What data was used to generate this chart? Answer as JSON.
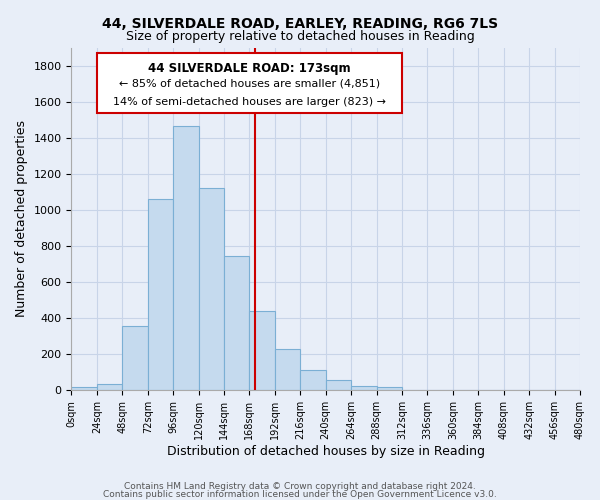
{
  "title": "44, SILVERDALE ROAD, EARLEY, READING, RG6 7LS",
  "subtitle": "Size of property relative to detached houses in Reading",
  "xlabel": "Distribution of detached houses by size in Reading",
  "ylabel": "Number of detached properties",
  "bar_color": "#c5daee",
  "bar_edge_color": "#7bafd4",
  "bin_edges": [
    0,
    24,
    48,
    72,
    96,
    120,
    144,
    168,
    192,
    216,
    240,
    264,
    288,
    312,
    336,
    360,
    384,
    408,
    432,
    456,
    480
  ],
  "bar_heights": [
    15,
    35,
    355,
    1060,
    1465,
    1120,
    745,
    440,
    228,
    110,
    55,
    20,
    15,
    0,
    0,
    0,
    0,
    0,
    0,
    0
  ],
  "tick_labels": [
    "0sqm",
    "24sqm",
    "48sqm",
    "72sqm",
    "96sqm",
    "120sqm",
    "144sqm",
    "168sqm",
    "192sqm",
    "216sqm",
    "240sqm",
    "264sqm",
    "288sqm",
    "312sqm",
    "336sqm",
    "360sqm",
    "384sqm",
    "408sqm",
    "432sqm",
    "456sqm",
    "480sqm"
  ],
  "vline_x": 173,
  "vline_color": "#cc0000",
  "ylim": [
    0,
    1900
  ],
  "yticks": [
    0,
    200,
    400,
    600,
    800,
    1000,
    1200,
    1400,
    1600,
    1800
  ],
  "annotation_title": "44 SILVERDALE ROAD: 173sqm",
  "annotation_line1": "← 85% of detached houses are smaller (4,851)",
  "annotation_line2": "14% of semi-detached houses are larger (823) →",
  "annotation_box_color": "#ffffff",
  "annotation_box_edge": "#cc0000",
  "footer1": "Contains HM Land Registry data © Crown copyright and database right 2024.",
  "footer2": "Contains public sector information licensed under the Open Government Licence v3.0.",
  "background_color": "#e8eef8",
  "grid_color": "#c8d4e8",
  "spine_color": "#aaaaaa"
}
